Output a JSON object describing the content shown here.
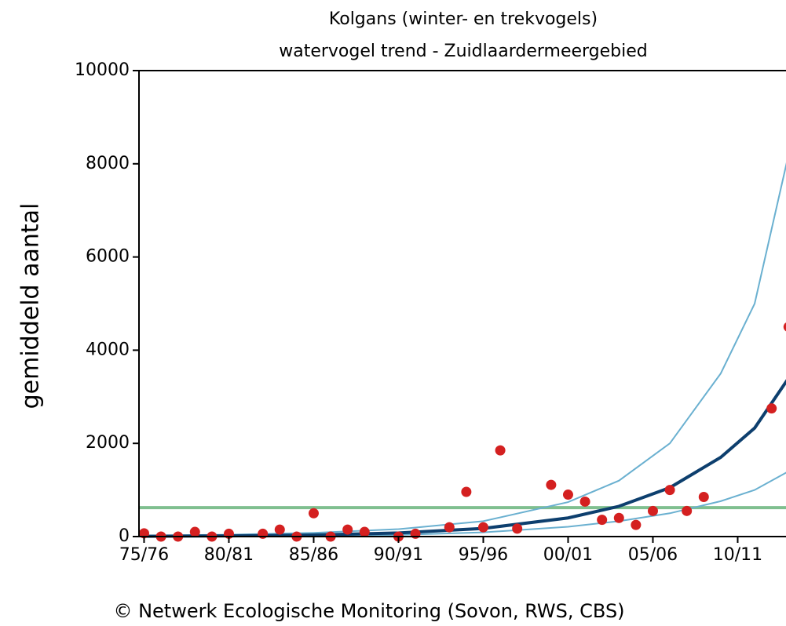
{
  "chart_data": {
    "type": "scatter",
    "title": "Kolgans (winter- en trekvogels)",
    "subtitle": "watervogel trend - Zuidlaardermeergebied",
    "y_label": "gemiddeld aantal",
    "footer": "© Netwerk Ecologische Monitoring (Sovon, RWS, CBS)",
    "xlim": [
      1974.7,
      2013.1
    ],
    "ylim": [
      0,
      10000
    ],
    "xticks": [
      {
        "value": 1975,
        "label": "75/76"
      },
      {
        "value": 1980,
        "label": "80/81"
      },
      {
        "value": 1985,
        "label": "85/86"
      },
      {
        "value": 1990,
        "label": "90/91"
      },
      {
        "value": 1995,
        "label": "95/96"
      },
      {
        "value": 2000,
        "label": "00/01"
      },
      {
        "value": 2005,
        "label": "05/06"
      },
      {
        "value": 2010,
        "label": "10/11"
      }
    ],
    "yticks": [
      0,
      2000,
      4000,
      6000,
      8000,
      10000
    ],
    "series": [
      {
        "mode": "line",
        "color": "#7fbf8f",
        "width": 4,
        "x": [
          1974.7,
          2013.1
        ],
        "values": [
          620,
          620
        ]
      },
      {
        "mode": "line",
        "color": "#6ab0d0",
        "width": 2,
        "x": [
          1975,
          1980,
          1985,
          1990,
          1995,
          2000,
          2003,
          2006,
          2009,
          2011,
          2013
        ],
        "values": [
          20,
          40,
          80,
          160,
          330,
          740,
          1200,
          2000,
          3500,
          5000,
          8200
        ]
      },
      {
        "mode": "line",
        "color": "#6ab0d0",
        "width": 2,
        "x": [
          1975,
          1980,
          1985,
          1990,
          1995,
          2000,
          2003,
          2006,
          2009,
          2011,
          2013
        ],
        "values": [
          3,
          7,
          15,
          35,
          90,
          210,
          330,
          500,
          760,
          1000,
          1400
        ]
      },
      {
        "mode": "line",
        "color": "#0d3f6e",
        "width": 4,
        "x": [
          1975,
          1980,
          1985,
          1990,
          1995,
          2000,
          2003,
          2006,
          2009,
          2011,
          2013
        ],
        "values": [
          7,
          15,
          33,
          77,
          175,
          400,
          650,
          1050,
          1700,
          2330,
          3400
        ]
      },
      {
        "mode": "markers",
        "color": "#d42020",
        "x": [
          1975,
          1976,
          1977,
          1978,
          1979,
          1980,
          1982,
          1983,
          1984,
          1985,
          1986,
          1987,
          1988,
          1990,
          1991,
          1993,
          1994,
          1995,
          1996,
          1997,
          1999,
          2000,
          2001,
          2002,
          2003,
          2004,
          2005,
          2006,
          2007,
          2008,
          2012,
          2013
        ],
        "values": [
          70,
          0,
          0,
          100,
          0,
          60,
          60,
          150,
          0,
          500,
          0,
          150,
          100,
          0,
          60,
          200,
          960,
          200,
          1850,
          170,
          1110,
          900,
          750,
          360,
          400,
          250,
          550,
          1000,
          550,
          850,
          2750,
          4500
        ]
      }
    ]
  }
}
